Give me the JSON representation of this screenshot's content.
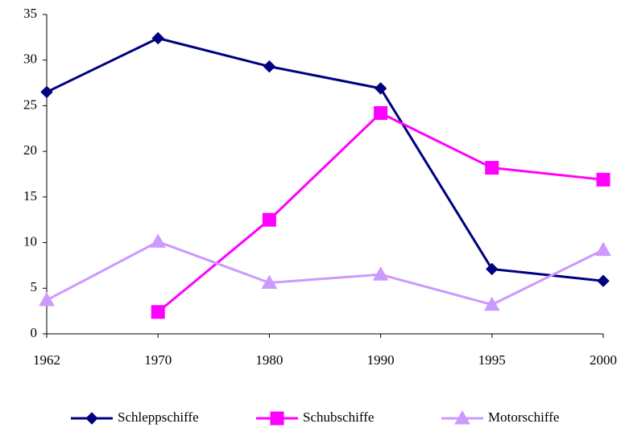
{
  "chart_data": {
    "type": "line",
    "categories": [
      "1962",
      "1970",
      "1980",
      "1990",
      "1995",
      "2000"
    ],
    "series": [
      {
        "name": "Schleppschiffe",
        "color": "#000080",
        "marker": "diamond",
        "values": [
          26.5,
          32.4,
          29.3,
          26.9,
          7.1,
          5.8
        ]
      },
      {
        "name": "Schubschiffe",
        "color": "#ff00ff",
        "marker": "square",
        "values": [
          null,
          2.4,
          12.5,
          24.2,
          18.2,
          16.9
        ]
      },
      {
        "name": "Motorschiffe",
        "color": "#cc99ff",
        "marker": "triangle",
        "values": [
          3.7,
          10.1,
          5.6,
          6.5,
          3.2,
          9.2
        ]
      }
    ],
    "ylim": [
      0,
      35
    ],
    "yticks": [
      0,
      5,
      10,
      15,
      20,
      25,
      30,
      35
    ],
    "grid": false,
    "legend": "bottom"
  }
}
